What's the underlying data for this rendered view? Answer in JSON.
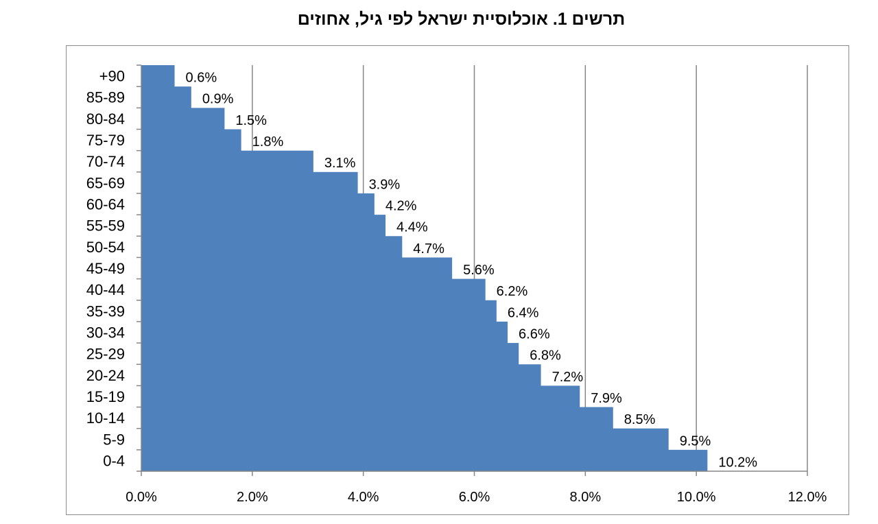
{
  "chart_data": {
    "type": "bar",
    "orientation": "horizontal",
    "title": "תרשים 1. אוכלוסיית ישראל לפי גיל, אחוזים",
    "categories": [
      "+90",
      "85-89",
      "80-84",
      "75-79",
      "70-74",
      "65-69",
      "60-64",
      "55-59",
      "50-54",
      "45-49",
      "40-44",
      "35-39",
      "30-34",
      "25-29",
      "20-24",
      "15-19",
      "10-14",
      "5-9",
      "0-4"
    ],
    "values": [
      0.6,
      0.9,
      1.5,
      1.8,
      3.1,
      3.9,
      4.2,
      4.4,
      4.7,
      5.6,
      6.2,
      6.4,
      6.6,
      6.8,
      7.2,
      7.9,
      8.5,
      9.5,
      10.2
    ],
    "data_labels": [
      "0.6%",
      "0.9%",
      "1.5%",
      "1.8%",
      "3.1%",
      "3.9%",
      "4.2%",
      "4.4%",
      "4.7%",
      "5.6%",
      "6.2%",
      "6.4%",
      "6.6%",
      "6.8%",
      "7.2%",
      "7.9%",
      "8.5%",
      "9.5%",
      "10.2%"
    ],
    "xlim": [
      0,
      12
    ],
    "x_ticks": [
      "0.0%",
      "2.0%",
      "4.0%",
      "6.0%",
      "8.0%",
      "10.0%",
      "12.0%"
    ],
    "grid": "vertical",
    "bar_color": "#4f81bd",
    "bar_gap": 0
  }
}
